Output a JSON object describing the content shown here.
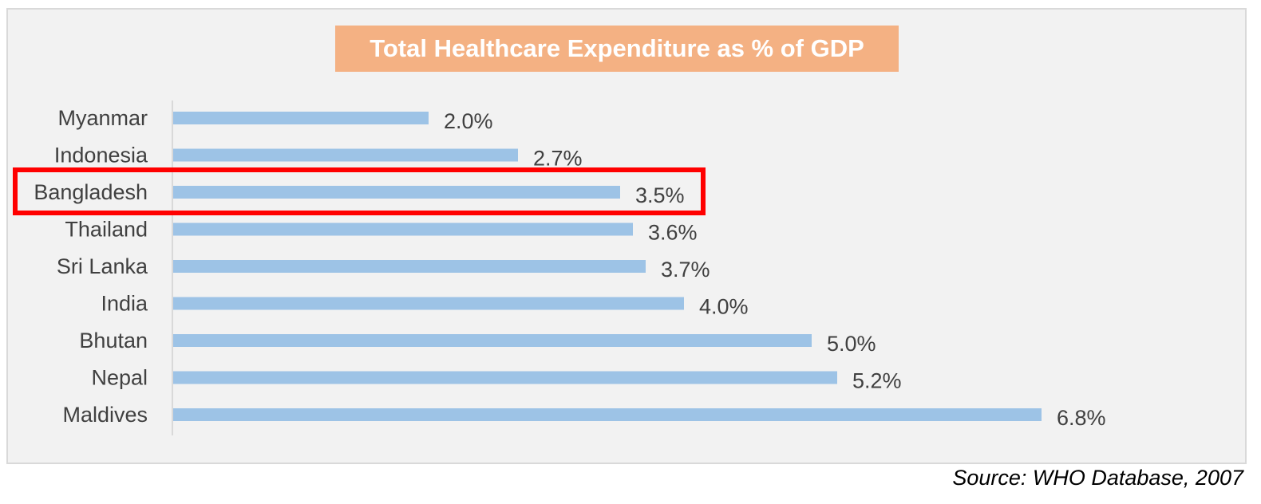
{
  "chart_data": {
    "type": "bar",
    "orientation": "horizontal",
    "title": "Total Healthcare Expenditure as % of GDP",
    "categories": [
      "Myanmar",
      "Indonesia",
      "Bangladesh",
      "Thailand",
      "Sri Lanka",
      "India",
      "Bhutan",
      "Nepal",
      "Maldives"
    ],
    "values": [
      2.0,
      2.7,
      3.5,
      3.6,
      3.7,
      4.0,
      5.0,
      5.2,
      6.8
    ],
    "value_labels": [
      "2.0%",
      "2.7%",
      "3.5%",
      "3.6%",
      "3.7%",
      "4.0%",
      "5.0%",
      "5.2%",
      "6.8%"
    ],
    "xlim": [
      0,
      7
    ],
    "highlighted_category": "Bangladesh",
    "grid": false,
    "colors": {
      "bar": "#9dc3e6",
      "highlight_box": "#ff0000",
      "title_bg": "#f4b183"
    }
  },
  "source": "Source: WHO Database, 2007"
}
